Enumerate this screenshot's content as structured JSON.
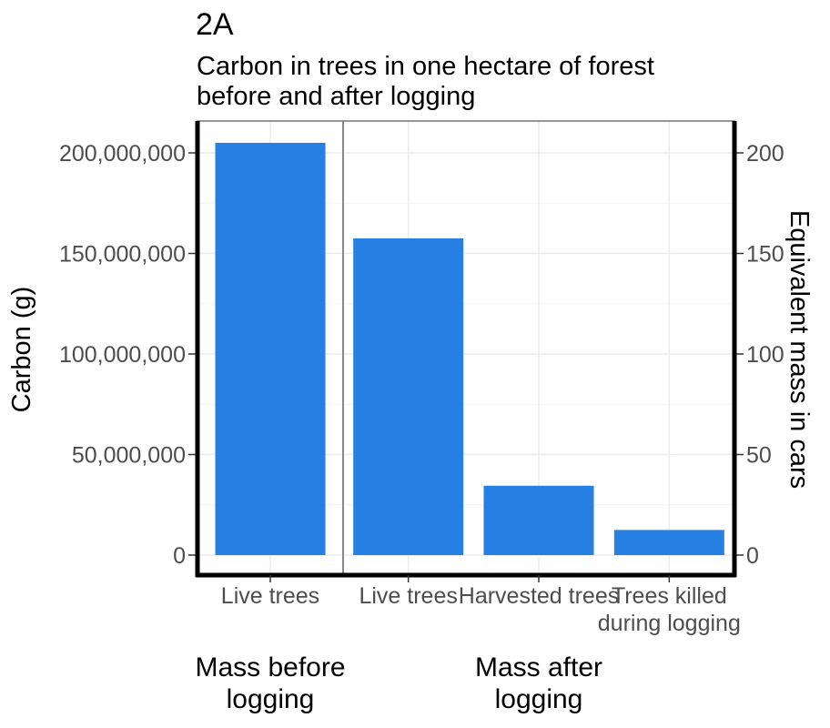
{
  "chart_data": {
    "type": "bar",
    "title": "2A",
    "subtitle": [
      "Carbon in trees in one hectare of forest",
      "before and after logging"
    ],
    "ylabel": "Carbon (g)",
    "y2label": "Equivalent mass in cars",
    "ylim": [
      0,
      213000000
    ],
    "y_ticks": [
      0,
      50000000,
      100000000,
      150000000,
      200000000
    ],
    "y_tick_labels": [
      "0",
      "50,000,000",
      "100,000,000",
      "150,000,000",
      "200,000,000"
    ],
    "y2_ticks": [
      0,
      50,
      100,
      150,
      200
    ],
    "y2_tick_labels": [
      "0",
      "50",
      "100",
      "150",
      "200"
    ],
    "cars_per_gram": 1e-06,
    "grid": true,
    "bar_color": "#2680e4",
    "panels": [
      {
        "label": [
          "Mass before",
          "logging"
        ],
        "categories": [
          [
            "Live trees"
          ]
        ],
        "values": [
          205000000
        ]
      },
      {
        "label": [
          "Mass after",
          "logging"
        ],
        "categories": [
          [
            "Live trees"
          ],
          [
            "Harvested trees"
          ],
          [
            "Trees killed",
            "during logging"
          ]
        ],
        "values": [
          157500000,
          34500000,
          12500000
        ]
      }
    ]
  }
}
